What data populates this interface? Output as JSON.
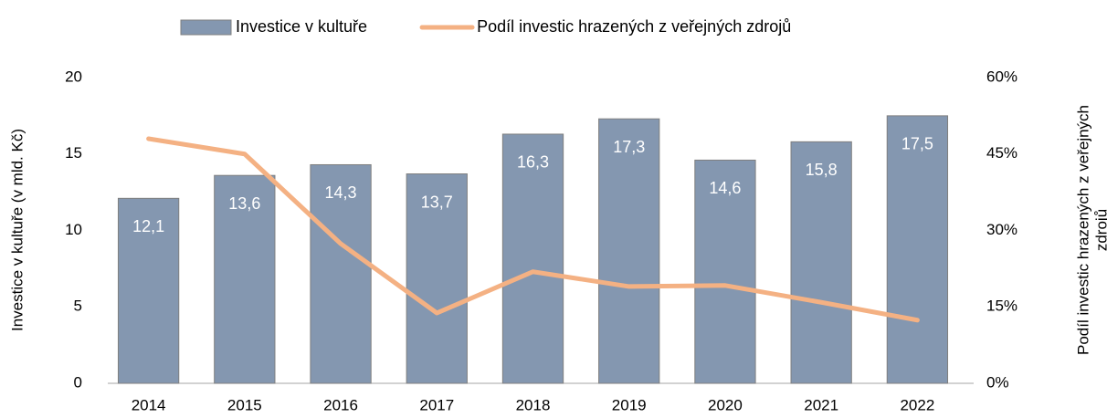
{
  "chart_data": {
    "type": "bar",
    "categories": [
      "2014",
      "2015",
      "2016",
      "2017",
      "2018",
      "2019",
      "2020",
      "2021",
      "2022"
    ],
    "series": [
      {
        "name": "Investice v kultuře",
        "type": "bar",
        "color": "#8497b0",
        "values": [
          12.1,
          13.6,
          14.3,
          13.7,
          16.3,
          17.3,
          14.6,
          15.8,
          17.5
        ],
        "value_labels": [
          "12,1",
          "13,6",
          "14,3",
          "13,7",
          "16,3",
          "17,3",
          "14,6",
          "15,8",
          "17,5"
        ]
      },
      {
        "name": "Podíl investic hrazených z veřejných zdrojů",
        "type": "line",
        "color": "#f4b183",
        "axis": "y2",
        "values": [
          48.0,
          45.0,
          27.4,
          13.8,
          21.9,
          19.0,
          19.2,
          15.9,
          12.4
        ]
      }
    ],
    "ylabel": "Investice v kultuře (v mld. Kč)",
    "y2label": [
      "Podíl investic hrazených z veřejných",
      "zdrojů"
    ],
    "ylim": [
      0,
      20
    ],
    "yticks": [
      0,
      5,
      10,
      15,
      20
    ],
    "y2lim": [
      0,
      60
    ],
    "y2ticks": [
      {
        "value": 0,
        "label": "0%"
      },
      {
        "value": 15,
        "label": "15%"
      },
      {
        "value": 30,
        "label": "30%"
      },
      {
        "value": 45,
        "label": "45%"
      },
      {
        "value": 60,
        "label": "60%"
      }
    ],
    "grid": false,
    "legend": "top"
  }
}
